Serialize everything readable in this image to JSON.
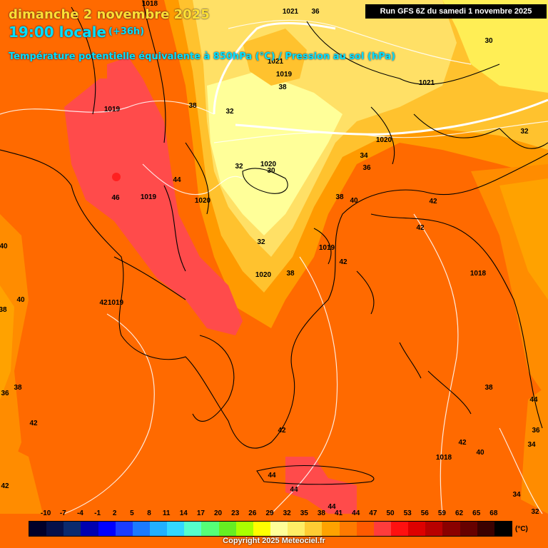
{
  "header": {
    "date": "dimanche 2 novembre 2025",
    "time": "19:00 locale",
    "lead": "(+36h)",
    "parameter": "Température potentielle équivalente à 850hPa (°C) / Pression au sol (hPa)",
    "run": "Run GFS 6Z du samedi 1 novembre 2025"
  },
  "map_labels": [
    {
      "id": "p1018a",
      "text": "1018"
    },
    {
      "id": "p1019a",
      "text": "1019"
    },
    {
      "id": "t36a",
      "text": "36"
    },
    {
      "id": "t30a",
      "text": "30"
    },
    {
      "id": "p1021a",
      "text": "1021"
    },
    {
      "id": "p1021b",
      "text": "1021"
    },
    {
      "id": "t38a",
      "text": "38"
    },
    {
      "id": "p1021c",
      "text": "1021"
    },
    {
      "id": "p1019b",
      "text": "1019"
    },
    {
      "id": "t38b",
      "text": "38"
    },
    {
      "id": "t32a",
      "text": "32"
    },
    {
      "id": "t32b",
      "text": "32"
    },
    {
      "id": "p1020a",
      "text": "1020"
    },
    {
      "id": "t34a",
      "text": "34"
    },
    {
      "id": "t32c",
      "text": "32"
    },
    {
      "id": "p1020b",
      "text": "1020"
    },
    {
      "id": "t30b",
      "text": "30"
    },
    {
      "id": "t36b",
      "text": "36"
    },
    {
      "id": "t44a",
      "text": "44"
    },
    {
      "id": "t46a",
      "text": "46"
    },
    {
      "id": "p1019c",
      "text": "1019"
    },
    {
      "id": "p1020c",
      "text": "1020"
    },
    {
      "id": "t38c",
      "text": "38"
    },
    {
      "id": "t40a",
      "text": "40"
    },
    {
      "id": "t42a",
      "text": "42"
    },
    {
      "id": "t42b",
      "text": "42"
    },
    {
      "id": "t40b",
      "text": "40"
    },
    {
      "id": "t32d",
      "text": "32"
    },
    {
      "id": "p1019d",
      "text": "1019"
    },
    {
      "id": "t42c",
      "text": "42"
    },
    {
      "id": "p1020d",
      "text": "1020"
    },
    {
      "id": "t38d",
      "text": "38"
    },
    {
      "id": "p1018b",
      "text": "1018"
    },
    {
      "id": "t40c",
      "text": "40"
    },
    {
      "id": "t42d",
      "text": "42"
    },
    {
      "id": "p1019e",
      "text": "1019"
    },
    {
      "id": "t38e",
      "text": "38"
    },
    {
      "id": "t36c",
      "text": "36"
    },
    {
      "id": "t38f",
      "text": "38"
    },
    {
      "id": "t42e",
      "text": "42"
    },
    {
      "id": "t42f",
      "text": "42"
    },
    {
      "id": "t38g",
      "text": "38"
    },
    {
      "id": "t44b",
      "text": "44"
    },
    {
      "id": "t36d",
      "text": "36"
    },
    {
      "id": "t34b",
      "text": "34"
    },
    {
      "id": "t42g",
      "text": "42"
    },
    {
      "id": "t40d",
      "text": "40"
    },
    {
      "id": "p1018c",
      "text": "1018"
    },
    {
      "id": "t44c",
      "text": "44"
    },
    {
      "id": "t44d",
      "text": "44"
    },
    {
      "id": "t44e",
      "text": "44"
    },
    {
      "id": "t42h",
      "text": "42"
    },
    {
      "id": "t34c",
      "text": "34"
    },
    {
      "id": "t32e",
      "text": "32"
    }
  ],
  "legend": {
    "ticks": [
      "-10",
      "-7",
      "-4",
      "-1",
      "2",
      "5",
      "8",
      "11",
      "14",
      "17",
      "20",
      "23",
      "26",
      "29",
      "32",
      "35",
      "38",
      "41",
      "44",
      "47",
      "50",
      "53",
      "56",
      "59",
      "62",
      "65",
      "68"
    ],
    "colors": [
      "#00002a",
      "#05104a",
      "#0a2a6e",
      "#0000b0",
      "#0000ff",
      "#1a3cff",
      "#1b7aff",
      "#22b0ff",
      "#33d8ff",
      "#55ffcc",
      "#55ff77",
      "#66ee22",
      "#aaff00",
      "#ffff00",
      "#ffff99",
      "#ffee66",
      "#ffcc33",
      "#ffa200",
      "#ff7a00",
      "#ff5a00",
      "#ff3c3c",
      "#ff1010",
      "#dd0000",
      "#b80000",
      "#8a0000",
      "#660000",
      "#3a0000",
      "#000000"
    ],
    "unit": "(°C)"
  },
  "copyright": "Copyright 2025 Meteociel.fr"
}
